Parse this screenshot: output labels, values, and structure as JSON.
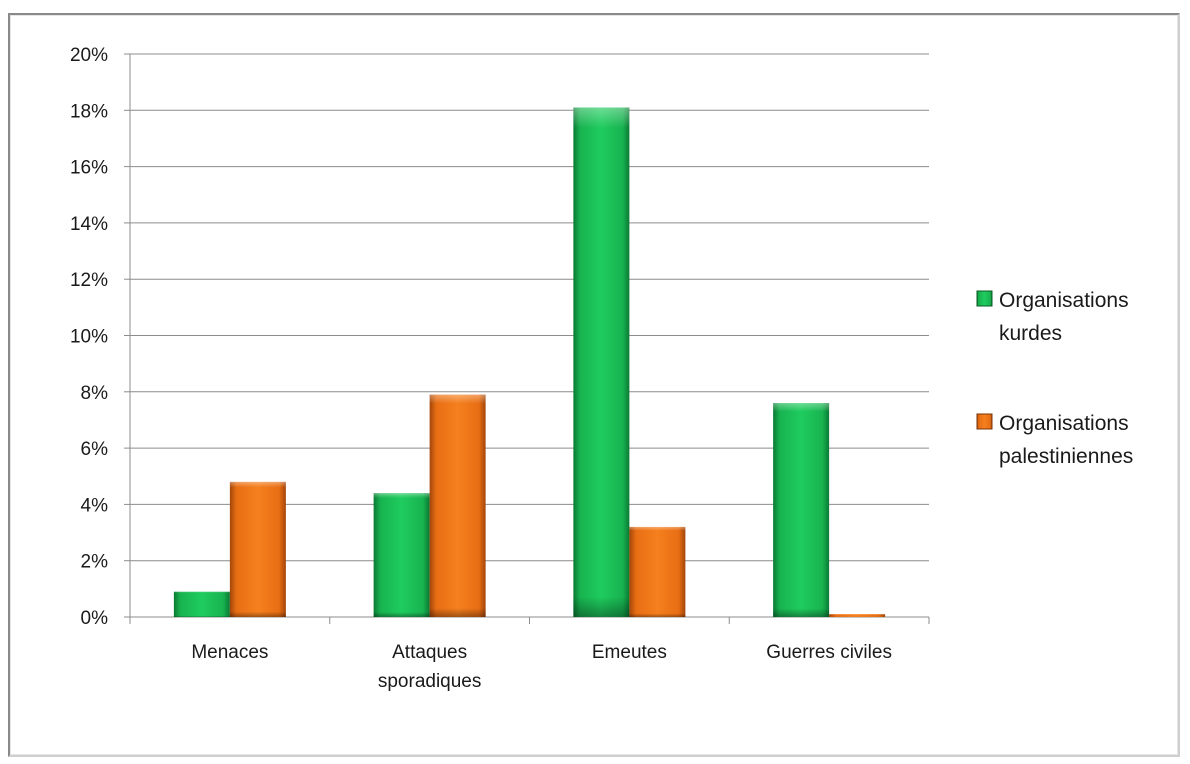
{
  "chart_data": {
    "type": "bar",
    "categories": [
      [
        "Menaces"
      ],
      [
        "Attaques",
        "sporadiques"
      ],
      [
        "Emeutes"
      ],
      [
        "Guerres civiles"
      ]
    ],
    "series": [
      {
        "name": "Organisations kurdes",
        "legend_lines": [
          "Organisations",
          "kurdes"
        ],
        "values": [
          0.9,
          4.4,
          18.1,
          7.6
        ]
      },
      {
        "name": "Organisations palestiniennes",
        "legend_lines": [
          "Organisations",
          "palestiniennes"
        ],
        "values": [
          4.8,
          7.9,
          3.2,
          0.1
        ]
      }
    ],
    "yticks": [
      "0%",
      "2%",
      "4%",
      "6%",
      "8%",
      "10%",
      "12%",
      "14%",
      "16%",
      "18%",
      "20%"
    ],
    "ylim": [
      0,
      20
    ],
    "grid": true,
    "legend_position": "right",
    "colors": {
      "kurdes": "#1fbf5a",
      "palestiniennes": "#f07a1a"
    }
  }
}
